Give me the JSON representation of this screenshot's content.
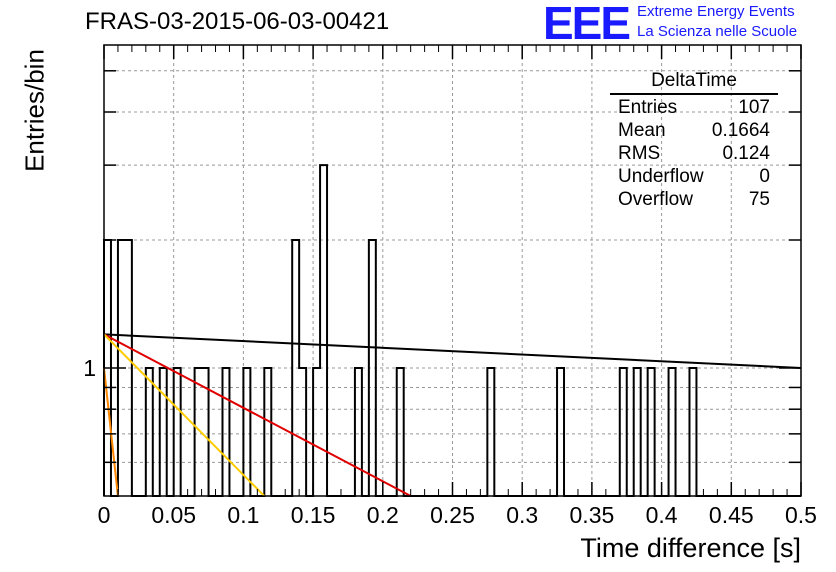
{
  "title": "FRAS-03-2015-06-03-00421",
  "logo": {
    "letters": "EEE",
    "line1": "Extreme Energy Events",
    "line2": "La Scienza nelle Scuole",
    "color": "#1a1aff"
  },
  "stats_box": {
    "title": "DeltaTime",
    "rows": [
      {
        "label": "Entries",
        "value": "107"
      },
      {
        "label": "Mean",
        "value": "0.1664"
      },
      {
        "label": "RMS",
        "value": "0.124"
      },
      {
        "label": "Underflow",
        "value": "0"
      },
      {
        "label": "Overflow",
        "value": "75"
      }
    ]
  },
  "chart_data": {
    "type": "bar",
    "xlabel": "Time difference [s]",
    "ylabel": "Entries/bin",
    "xlim": [
      0,
      0.5
    ],
    "x_ticks": [
      "0",
      "0.05",
      "0.1",
      "0.15",
      "0.2",
      "0.25",
      "0.3",
      "0.35",
      "0.4",
      "0.45",
      "0.5"
    ],
    "y_ticks": [
      "1"
    ],
    "log_y": true,
    "grid": true,
    "bin_width": 0.005,
    "bins": [
      {
        "x": 0.0,
        "value": 2
      },
      {
        "x": 0.01,
        "value": 2
      },
      {
        "x": 0.015,
        "value": 2
      },
      {
        "x": 0.03,
        "value": 1
      },
      {
        "x": 0.04,
        "value": 1
      },
      {
        "x": 0.05,
        "value": 1
      },
      {
        "x": 0.065,
        "value": 1
      },
      {
        "x": 0.07,
        "value": 1
      },
      {
        "x": 0.085,
        "value": 1
      },
      {
        "x": 0.1,
        "value": 1
      },
      {
        "x": 0.115,
        "value": 1
      },
      {
        "x": 0.135,
        "value": 2
      },
      {
        "x": 0.14,
        "value": 1
      },
      {
        "x": 0.15,
        "value": 1
      },
      {
        "x": 0.155,
        "value": 3
      },
      {
        "x": 0.18,
        "value": 1
      },
      {
        "x": 0.19,
        "value": 2
      },
      {
        "x": 0.21,
        "value": 1
      },
      {
        "x": 0.275,
        "value": 1
      },
      {
        "x": 0.325,
        "value": 1
      },
      {
        "x": 0.37,
        "value": 1
      },
      {
        "x": 0.38,
        "value": 1
      },
      {
        "x": 0.39,
        "value": 1
      },
      {
        "x": 0.405,
        "value": 1
      },
      {
        "x": 0.42,
        "value": 1
      }
    ],
    "fit_lines": [
      {
        "color": "#000000",
        "points": [
          [
            0,
            1.2
          ],
          [
            0.5,
            1.0
          ]
        ]
      },
      {
        "color": "#e00000",
        "points": [
          [
            0,
            1.2
          ],
          [
            0.22,
            0.5
          ]
        ]
      },
      {
        "color": "#ffcc00",
        "points": [
          [
            0,
            1.2
          ],
          [
            0.115,
            0.5
          ]
        ]
      },
      {
        "color": "#ff8800",
        "points": [
          [
            0,
            1.0
          ],
          [
            0.01,
            0.5
          ]
        ]
      }
    ]
  }
}
